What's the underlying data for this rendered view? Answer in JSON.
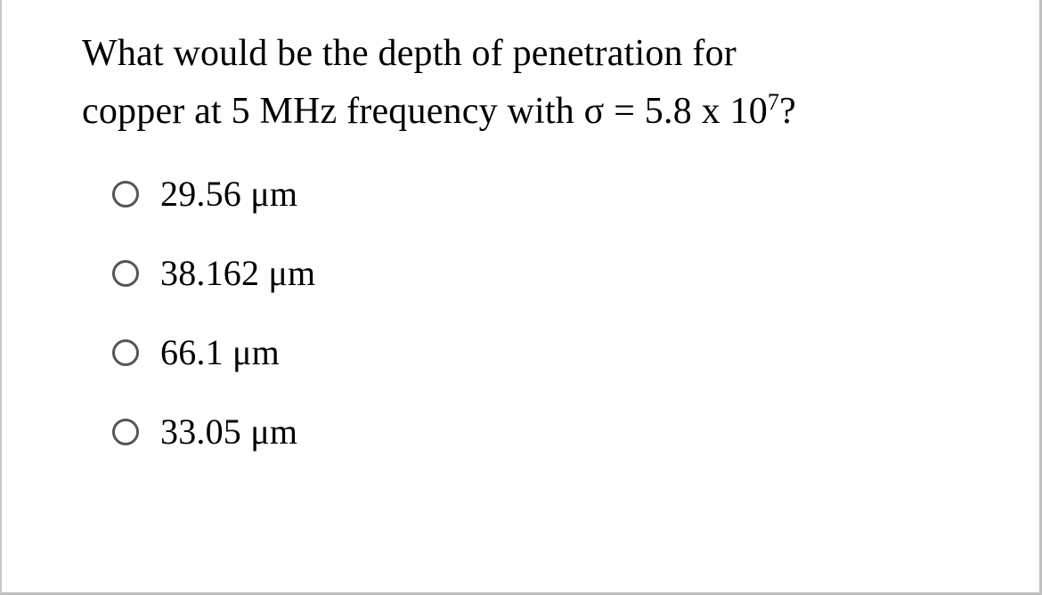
{
  "question": {
    "text_line1": "What would be the depth of penetration for",
    "text_line2_prefix": "copper at 5 MHz frequency with σ = 5.8 x 10",
    "exponent": "7",
    "text_line2_suffix": "?",
    "font_size": 42,
    "color": "#000000"
  },
  "options": [
    {
      "label": "29.56 μm",
      "selected": false
    },
    {
      "label": "38.162 μm",
      "selected": false
    },
    {
      "label": "66.1 μm",
      "selected": false
    },
    {
      "label": "33.05 μm",
      "selected": false
    }
  ],
  "style": {
    "background_color": "#ffffff",
    "border_color": "#bfbfbf",
    "radio_border_color": "#555555",
    "option_font_size": 40,
    "font_family": "Times New Roman"
  }
}
